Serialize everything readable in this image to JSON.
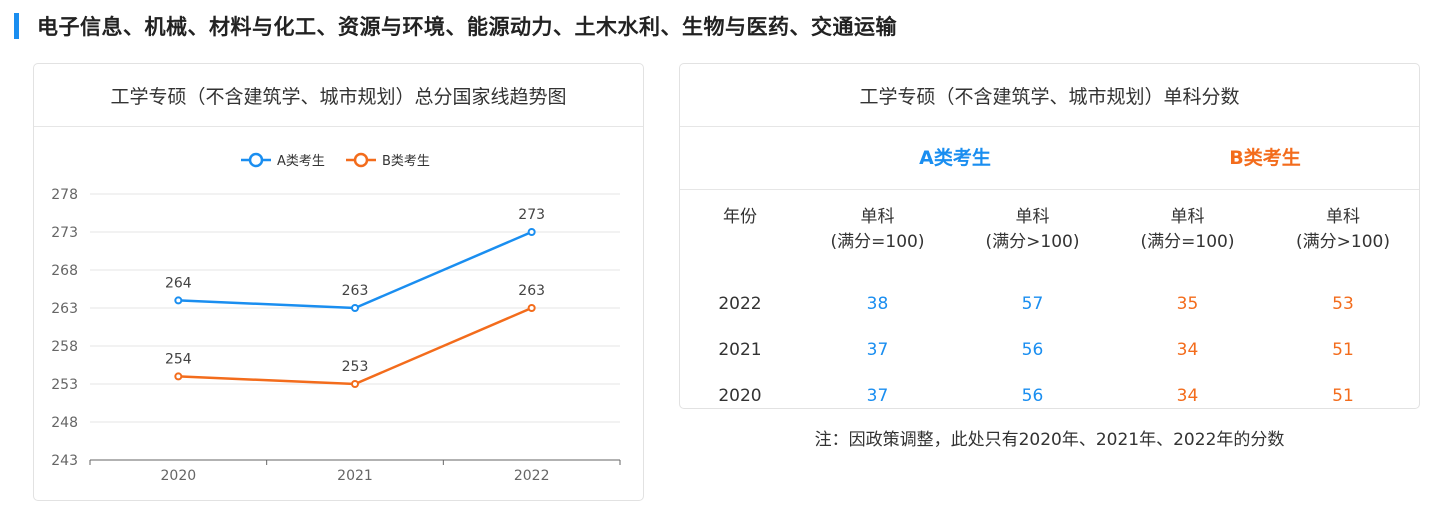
{
  "header": {
    "title": "电子信息、机械、材料与化工、资源与环境、能源动力、土木水利、生物与医药、交通运输",
    "accent_color": "#1a8ef0"
  },
  "left_card": {
    "title": "工学专硕（不含建筑学、城市规划）总分国家线趋势图"
  },
  "chart_data": {
    "type": "line",
    "title": "工学专硕（不含建筑学、城市规划）总分国家线趋势图",
    "x": [
      "2020",
      "2021",
      "2022"
    ],
    "series": [
      {
        "name": "A类考生",
        "values": [
          264,
          263,
          273
        ],
        "color": "#1a8ef0"
      },
      {
        "name": "B类考生",
        "values": [
          254,
          253,
          263
        ],
        "color": "#f36c1c"
      }
    ],
    "ylim": [
      243,
      278
    ],
    "yticks": [
      243,
      248,
      253,
      258,
      263,
      268,
      273,
      278
    ],
    "grid": true,
    "legend": "top-center",
    "data_labels": true
  },
  "right_card": {
    "title": "工学专硕（不含建筑学、城市规划）单科分数",
    "group_a": "A类考生",
    "group_b": "B类考生",
    "col_year": "年份",
    "col_a1": "单科\n(满分=100)",
    "col_a2": "单科\n(满分>100)",
    "col_b1": "单科\n(满分=100)",
    "col_b2": "单科\n(满分>100)",
    "rows": [
      {
        "year": "2022",
        "a1": "38",
        "a2": "57",
        "b1": "35",
        "b2": "53"
      },
      {
        "year": "2021",
        "a1": "37",
        "a2": "56",
        "b1": "34",
        "b2": "51"
      },
      {
        "year": "2020",
        "a1": "37",
        "a2": "56",
        "b1": "34",
        "b2": "51"
      }
    ]
  },
  "note": "注：因政策调整，此处只有2020年、2021年、2022年的分数"
}
